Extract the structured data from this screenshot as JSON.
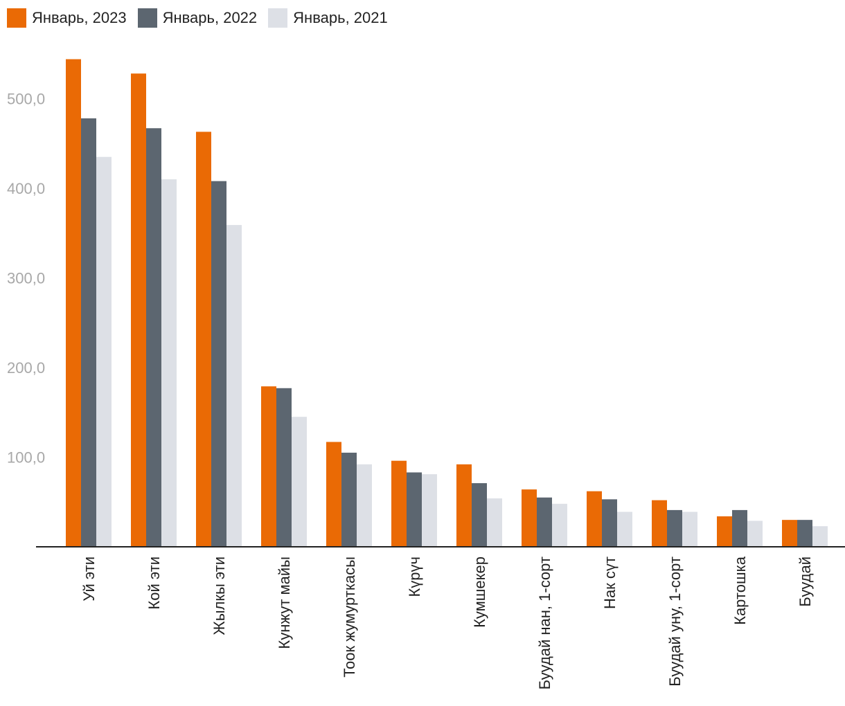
{
  "chart_data": {
    "type": "bar",
    "categories": [
      "Уй эти",
      "Кой эти",
      "Жылкы эти",
      "Кунжут майы",
      "Тоок жумурткасы",
      "Күрүч",
      "Кумшекер",
      "Буудай нан, 1-сорт",
      "Нак сүт",
      "Буудай уну, 1-сорт",
      "Картошка",
      "Буудай"
    ],
    "series": [
      {
        "name": "Январь, 2023",
        "color": "#EA6A05",
        "values": [
          544,
          528,
          463,
          179,
          117,
          96,
          92,
          64,
          62,
          52,
          34,
          30
        ]
      },
      {
        "name": "Январь, 2022",
        "color": "#5C6670",
        "values": [
          478,
          467,
          408,
          177,
          105,
          83,
          71,
          55,
          53,
          41,
          41,
          30
        ]
      },
      {
        "name": "Январь, 2021",
        "color": "#DDE0E6",
        "values": [
          435,
          410,
          359,
          145,
          92,
          81,
          54,
          48,
          39,
          39,
          29,
          23
        ]
      }
    ],
    "yticks": [
      "100,0",
      "200,0",
      "300,0",
      "400,0",
      "500,0"
    ],
    "ytick_values": [
      100,
      200,
      300,
      400,
      500
    ],
    "ylim": [
      0,
      550
    ],
    "grid": false,
    "legend_position": "top-left",
    "title": "",
    "xlabel": "",
    "ylabel": ""
  }
}
